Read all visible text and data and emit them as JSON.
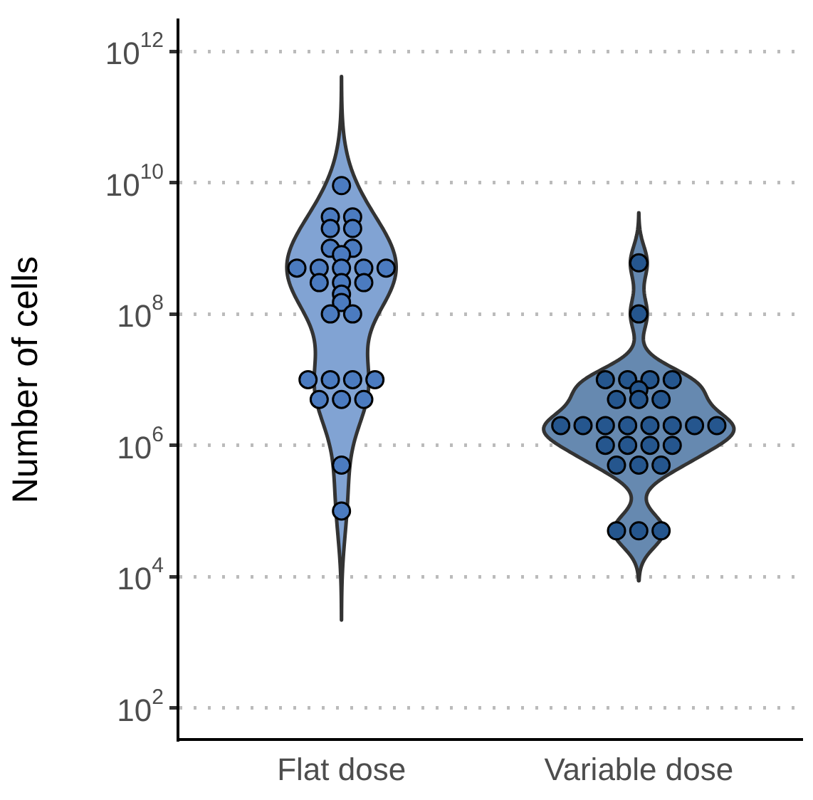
{
  "chart_data": {
    "type": "scatter",
    "ylabel": "Number of cells",
    "categories": [
      "Flat dose",
      "Variable dose"
    ],
    "log": "y",
    "ylim": [
      33,
      3000000000000.0
    ],
    "yticks": [
      {
        "value": 100,
        "label": "10$^{2}$"
      },
      {
        "value": 10000,
        "label": "10$^{4}$"
      },
      {
        "value": 1000000,
        "label": "10$^{6}$"
      },
      {
        "value": 100000000,
        "label": "10$^{8}$"
      },
      {
        "value": 10000000000,
        "label": "10$^{10}$"
      },
      {
        "value": 1000000000000,
        "label": "10$^{12}$"
      }
    ],
    "grid": "y",
    "legend": false,
    "marker": "circle",
    "series": [
      {
        "color": "#4b7bc0",
        "x": [
          "Flat dose",
          "Flat dose",
          "Flat dose",
          "Flat dose",
          "Flat dose",
          "Flat dose",
          "Flat dose",
          "Flat dose",
          "Flat dose",
          "Flat dose",
          "Flat dose",
          "Flat dose",
          "Flat dose",
          "Flat dose",
          "Flat dose",
          "Flat dose",
          "Flat dose",
          "Flat dose",
          "Flat dose",
          "Flat dose",
          "Flat dose",
          "Flat dose",
          "Flat dose",
          "Flat dose",
          "Flat dose",
          "Flat dose",
          "Flat dose",
          "Flat dose",
          "Flat dose"
        ],
        "values": [
          9000000000,
          3000000000,
          3000000000,
          2000000000,
          2000000000,
          1000000000,
          1000000000,
          800000000,
          500000000,
          500000000,
          500000000,
          500000000,
          500000000,
          300000000,
          300000000,
          300000000,
          200000000,
          150000000,
          100000000,
          100000000,
          10000000,
          10000000,
          10000000,
          10000000,
          5000000,
          5000000,
          5000000,
          500000,
          100000
        ]
      },
      {
        "color": "#25568e",
        "x": [
          "Variable dose",
          "Variable dose",
          "Variable dose",
          "Variable dose",
          "Variable dose",
          "Variable dose",
          "Variable dose",
          "Variable dose",
          "Variable dose",
          "Variable dose",
          "Variable dose",
          "Variable dose",
          "Variable dose",
          "Variable dose",
          "Variable dose",
          "Variable dose",
          "Variable dose",
          "Variable dose",
          "Variable dose",
          "Variable dose",
          "Variable dose",
          "Variable dose",
          "Variable dose",
          "Variable dose",
          "Variable dose",
          "Variable dose",
          "Variable dose",
          "Variable dose"
        ],
        "values": [
          600000000,
          100000000,
          10000000,
          10000000,
          10000000,
          10000000,
          7000000,
          5000000,
          5000000,
          5000000,
          2000000,
          2000000,
          2000000,
          2000000,
          2000000,
          2000000,
          2000000,
          2000000,
          1000000,
          1000000,
          1000000,
          1000000,
          500000,
          500000,
          500000,
          50000,
          50000,
          50000
        ]
      }
    ]
  }
}
